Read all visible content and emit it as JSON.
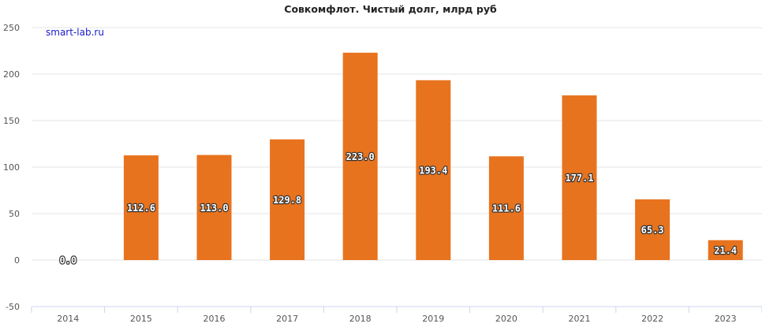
{
  "chart_data": {
    "type": "bar",
    "title": "Совкомфлот. Чистый долг, млрд руб",
    "watermark": "smart-lab.ru",
    "categories": [
      "2014",
      "2015",
      "2016",
      "2017",
      "2018",
      "2019",
      "2020",
      "2021",
      "2022",
      "2023"
    ],
    "values": [
      0.0,
      112.6,
      113.0,
      129.8,
      223.0,
      193.4,
      111.6,
      177.1,
      65.3,
      21.4
    ],
    "data_labels": [
      "0.0",
      "112.6",
      "113.0",
      "129.8",
      "223.0",
      "193.4",
      "111.6",
      "177.1",
      "65.3",
      "21.4"
    ],
    "ylim": [
      -50,
      250
    ],
    "yticks": [
      "-50",
      "0",
      "50",
      "100",
      "150",
      "200",
      "250"
    ],
    "ytick_values": [
      -50,
      0,
      50,
      100,
      150,
      200,
      250
    ],
    "xlabel": "",
    "ylabel": "",
    "grid": true,
    "bar_color": "#e8731e"
  }
}
